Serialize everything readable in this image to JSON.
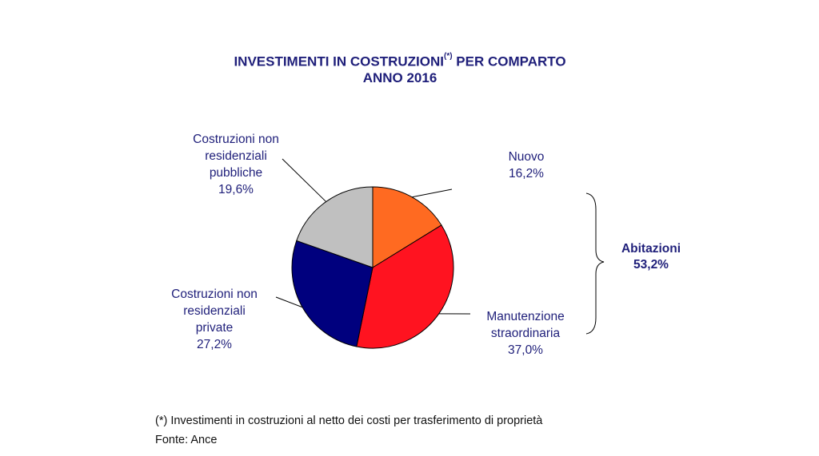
{
  "chart_data": {
    "type": "pie",
    "title": "INVESTIMENTI IN COSTRUZIONI",
    "title_marker": "(*)",
    "title_suffix": " PER COMPARTO",
    "subtitle": "ANNO 2016",
    "slices": [
      {
        "label_lines": [
          "Nuovo"
        ],
        "value": 16.2,
        "value_text": "16,2%",
        "color": "#ff6a21"
      },
      {
        "label_lines": [
          "Manutenzione",
          "straordinaria"
        ],
        "value": 37.0,
        "value_text": "37,0%",
        "color": "#ff1320"
      },
      {
        "label_lines": [
          "Costruzioni  non",
          "residenziali",
          "private"
        ],
        "value": 27.2,
        "value_text": "27,2%",
        "color": "#00007e"
      },
      {
        "label_lines": [
          "Costruzioni  non",
          "residenziali",
          "pubbliche"
        ],
        "value": 19.6,
        "value_text": "19,6%",
        "color": "#c0c0c0"
      }
    ],
    "group": {
      "name": "Abitazioni",
      "value_text": "53,2%",
      "members": [
        "Nuovo",
        "Manutenzione straordinaria"
      ]
    }
  },
  "footnote": "(*) Investimenti in costruzioni al netto dei costi per trasferimento di proprietà",
  "source": "Fonte: Ance",
  "colors": {
    "text": "#1f1f7a",
    "stroke": "#000000"
  }
}
